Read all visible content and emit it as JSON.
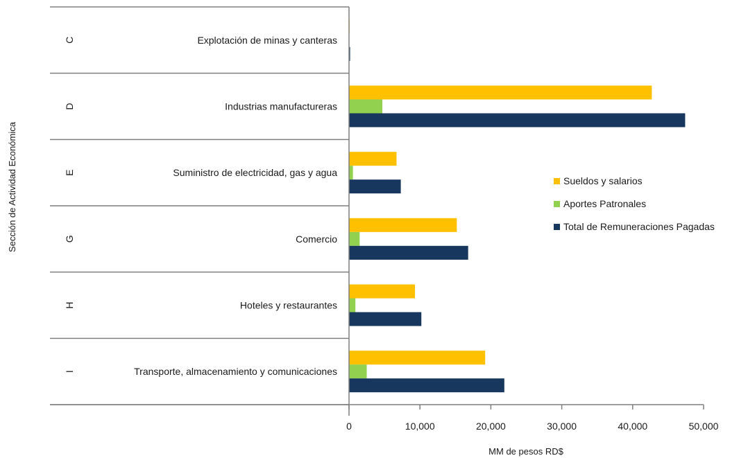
{
  "chart_data": {
    "type": "bar",
    "orientation": "horizontal",
    "title": "",
    "ylabel": "Sección de Actividad Económica",
    "xlabel": "MM de pesos RD$",
    "xlim": [
      0,
      50000
    ],
    "xticks": [
      0,
      10000,
      20000,
      30000,
      40000,
      50000
    ],
    "xtick_labels": [
      "0",
      "10,000",
      "20,000",
      "30,000",
      "40,000",
      "50,000"
    ],
    "grid": false,
    "legend_position": "right",
    "categories": [
      {
        "code": "C",
        "name": "Explotación de minas y canteras"
      },
      {
        "code": "D",
        "name": "Industrias manufactureras"
      },
      {
        "code": "E",
        "name": "Suministro de electricidad, gas y agua"
      },
      {
        "code": "G",
        "name": "Comercio"
      },
      {
        "code": "H",
        "name": "Hoteles y restaurantes"
      },
      {
        "code": "I",
        "name": "Transporte, almacenamiento y comunicaciones"
      }
    ],
    "series": [
      {
        "name": "Sueldos y salarios",
        "color": "#FFC000",
        "values": [
          80,
          42700,
          6700,
          15200,
          9300,
          19200
        ]
      },
      {
        "name": "Aportes Patronales",
        "color": "#92D050",
        "values": [
          10,
          4700,
          550,
          1500,
          900,
          2500
        ]
      },
      {
        "name": "Total de Remuneraciones Pagadas",
        "color": "#17375E",
        "values": [
          150,
          47400,
          7300,
          16800,
          10200,
          21900
        ]
      }
    ]
  }
}
